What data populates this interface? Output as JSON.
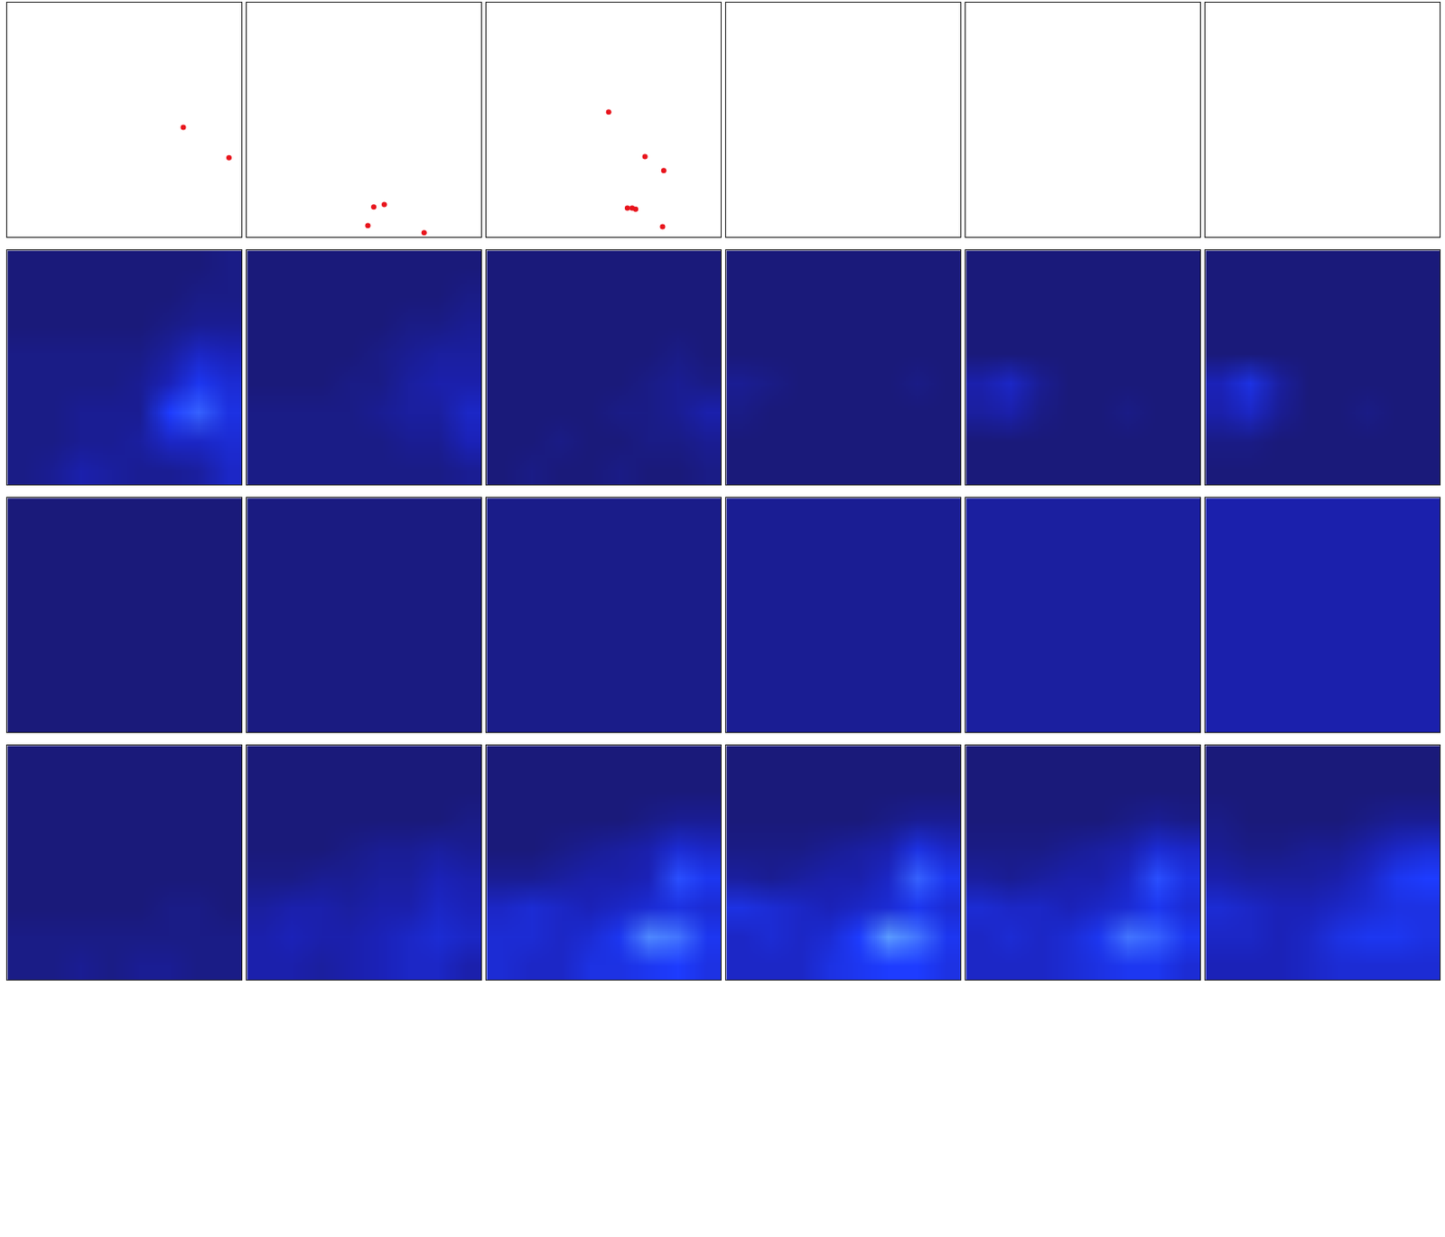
{
  "chart_data": [
    {
      "type": "scatter",
      "x": [
        0.75,
        0.945
      ],
      "y": [
        0.53,
        0.66
      ],
      "color": "#e8141c",
      "xlim": [
        0,
        1
      ],
      "ylim": [
        0,
        1
      ],
      "tick_labels": false
    },
    {
      "type": "scatter",
      "x": [
        0.54,
        0.585,
        0.515,
        0.755
      ],
      "y": [
        0.87,
        0.86,
        0.95,
        0.98
      ],
      "color": "#e8141c",
      "xlim": [
        0,
        1
      ],
      "ylim": [
        0,
        1
      ],
      "tick_labels": false
    },
    {
      "type": "scatter",
      "x": [
        0.52,
        0.675,
        0.755,
        0.6,
        0.62,
        0.635,
        0.75
      ],
      "y": [
        0.465,
        0.655,
        0.715,
        0.875,
        0.875,
        0.88,
        0.955
      ],
      "color": "#e8141c",
      "xlim": [
        0,
        1
      ],
      "ylim": [
        0,
        1
      ],
      "tick_labels": false
    },
    {
      "type": "scatter",
      "x": [],
      "y": [],
      "color": "#e8141c",
      "xlim": [
        0,
        1
      ],
      "ylim": [
        0,
        1
      ],
      "tick_labels": false
    },
    {
      "type": "scatter",
      "x": [],
      "y": [],
      "color": "#e8141c",
      "xlim": [
        0,
        1
      ],
      "ylim": [
        0,
        1
      ],
      "tick_labels": false
    },
    {
      "type": "scatter",
      "x": [],
      "y": [],
      "color": "#e8141c",
      "xlim": [
        0,
        1
      ],
      "ylim": [
        0,
        1
      ],
      "tick_labels": false
    },
    {
      "type": "heatmap",
      "clim": [
        0,
        1
      ],
      "tick_labels": false,
      "cells": [
        [
          0,
          0,
          0,
          0,
          0,
          0,
          0,
          0.05
        ],
        [
          0,
          0,
          0,
          0,
          0,
          0,
          0.05,
          0.05
        ],
        [
          0,
          0,
          0,
          0,
          0,
          0.05,
          0.1,
          0.1
        ],
        [
          0.05,
          0.05,
          0.05,
          0.05,
          0.05,
          0.15,
          0.3,
          0.25
        ],
        [
          0.05,
          0.05,
          0.05,
          0.05,
          0.1,
          0.25,
          0.45,
          0.35
        ],
        [
          0.05,
          0.05,
          0.1,
          0.1,
          0.1,
          0.5,
          0.6,
          0.4
        ],
        [
          0.05,
          0.05,
          0.1,
          0.1,
          0.15,
          0.3,
          0.3,
          0.35
        ],
        [
          0.05,
          0.1,
          0.2,
          0.15,
          0.1,
          0.1,
          0.15,
          0.3
        ]
      ]
    },
    {
      "type": "heatmap",
      "clim": [
        0,
        1
      ],
      "tick_labels": false,
      "cells": [
        [
          0,
          0,
          0,
          0,
          0,
          0,
          0,
          0
        ],
        [
          0,
          0,
          0,
          0,
          0,
          0,
          0,
          0.05
        ],
        [
          0,
          0,
          0,
          0,
          0,
          0.05,
          0.05,
          0.1
        ],
        [
          0,
          0,
          0,
          0,
          0.05,
          0.1,
          0.15,
          0.15
        ],
        [
          0,
          0,
          0,
          0.05,
          0.05,
          0.15,
          0.2,
          0.2
        ],
        [
          0.05,
          0.05,
          0.05,
          0.05,
          0.1,
          0.15,
          0.15,
          0.3
        ],
        [
          0.05,
          0.05,
          0.05,
          0.05,
          0.05,
          0.1,
          0.1,
          0.25
        ],
        [
          0.05,
          0.05,
          0.05,
          0.05,
          0.05,
          0.05,
          0.05,
          0.1
        ]
      ]
    },
    {
      "type": "heatmap",
      "clim": [
        0,
        1
      ],
      "tick_labels": false,
      "cells": [
        [
          0,
          0,
          0,
          0,
          0,
          0,
          0,
          0
        ],
        [
          0,
          0,
          0,
          0,
          0,
          0,
          0,
          0
        ],
        [
          0,
          0,
          0,
          0,
          0,
          0,
          0,
          0
        ],
        [
          0,
          0,
          0,
          0,
          0,
          0,
          0.05,
          0
        ],
        [
          0,
          0,
          0,
          0,
          0,
          0.05,
          0.1,
          0.05
        ],
        [
          0,
          0,
          0,
          0,
          0.05,
          0.05,
          0.1,
          0.2
        ],
        [
          0,
          0,
          0.05,
          0,
          0,
          0.05,
          0.05,
          0.1
        ],
        [
          0,
          0.05,
          0,
          0,
          0.05,
          0,
          0,
          0.05
        ]
      ]
    },
    {
      "type": "heatmap",
      "clim": [
        0,
        1
      ],
      "tick_labels": false,
      "cells": [
        [
          0,
          0,
          0,
          0,
          0,
          0,
          0,
          0
        ],
        [
          0,
          0,
          0,
          0,
          0,
          0,
          0,
          0
        ],
        [
          0,
          0,
          0,
          0,
          0,
          0,
          0,
          0
        ],
        [
          0,
          0,
          0,
          0,
          0,
          0,
          0,
          0
        ],
        [
          0.1,
          0.05,
          0,
          0,
          0,
          0,
          0.05,
          0
        ],
        [
          0.05,
          0,
          0,
          0,
          0,
          0,
          0,
          0
        ],
        [
          0,
          0,
          0,
          0,
          0,
          0,
          0,
          0
        ],
        [
          0,
          0,
          0,
          0,
          0,
          0,
          0,
          0
        ]
      ]
    },
    {
      "type": "heatmap",
      "clim": [
        0,
        1
      ],
      "tick_labels": false,
      "cells": [
        [
          0,
          0,
          0,
          0,
          0,
          0,
          0,
          0
        ],
        [
          0,
          0,
          0,
          0,
          0,
          0,
          0,
          0
        ],
        [
          0,
          0,
          0,
          0,
          0,
          0,
          0,
          0
        ],
        [
          0,
          0,
          0,
          0,
          0,
          0,
          0,
          0
        ],
        [
          0.2,
          0.3,
          0.1,
          0,
          0,
          0,
          0,
          0
        ],
        [
          0.15,
          0.2,
          0.05,
          0,
          0,
          0.05,
          0,
          0
        ],
        [
          0,
          0,
          0,
          0,
          0,
          0,
          0,
          0
        ],
        [
          0,
          0,
          0,
          0,
          0,
          0,
          0,
          0
        ]
      ]
    },
    {
      "type": "heatmap",
      "clim": [
        0,
        1
      ],
      "tick_labels": false,
      "cells": [
        [
          0,
          0,
          0,
          0,
          0,
          0,
          0,
          0
        ],
        [
          0,
          0,
          0,
          0,
          0,
          0,
          0,
          0
        ],
        [
          0,
          0,
          0,
          0,
          0,
          0,
          0,
          0
        ],
        [
          0,
          0,
          0,
          0,
          0,
          0,
          0,
          0
        ],
        [
          0.25,
          0.4,
          0.15,
          0,
          0,
          0,
          0,
          0
        ],
        [
          0.2,
          0.3,
          0.1,
          0,
          0,
          0.05,
          0,
          0
        ],
        [
          0.05,
          0.05,
          0,
          0,
          0,
          0,
          0,
          0
        ],
        [
          0,
          0,
          0,
          0,
          0,
          0,
          0,
          0
        ]
      ]
    },
    {
      "type": "heatmap",
      "clim": [
        0,
        1
      ],
      "tick_labels": false,
      "cells": [
        [
          0,
          0,
          0,
          0
        ],
        [
          0,
          0,
          0,
          0
        ],
        [
          0,
          0,
          0,
          0
        ],
        [
          0,
          0,
          0,
          0
        ]
      ]
    },
    {
      "type": "heatmap",
      "clim": [
        0,
        1
      ],
      "tick_labels": false,
      "cells": [
        [
          0.03,
          0.03,
          0.03,
          0.03
        ],
        [
          0.03,
          0.03,
          0.03,
          0.03
        ],
        [
          0.03,
          0.03,
          0.03,
          0.03
        ],
        [
          0.03,
          0.03,
          0.03,
          0.03
        ]
      ]
    },
    {
      "type": "heatmap",
      "clim": [
        0,
        1
      ],
      "tick_labels": false,
      "cells": [
        [
          0.06,
          0.06,
          0.06,
          0.06
        ],
        [
          0.06,
          0.06,
          0.06,
          0.06
        ],
        [
          0.06,
          0.06,
          0.06,
          0.06
        ],
        [
          0.06,
          0.06,
          0.06,
          0.06
        ]
      ]
    },
    {
      "type": "heatmap",
      "clim": [
        0,
        1
      ],
      "tick_labels": false,
      "cells": [
        [
          0.1,
          0.1,
          0.1,
          0.1
        ],
        [
          0.1,
          0.1,
          0.1,
          0.1
        ],
        [
          0.1,
          0.1,
          0.1,
          0.1
        ],
        [
          0.1,
          0.1,
          0.1,
          0.1
        ]
      ]
    },
    {
      "type": "heatmap",
      "clim": [
        0,
        1
      ],
      "tick_labels": false,
      "cells": [
        [
          0.15,
          0.15,
          0.15,
          0.15
        ],
        [
          0.15,
          0.15,
          0.15,
          0.15
        ],
        [
          0.15,
          0.15,
          0.15,
          0.15
        ],
        [
          0.15,
          0.15,
          0.15,
          0.15
        ]
      ]
    },
    {
      "type": "heatmap",
      "clim": [
        0,
        1
      ],
      "tick_labels": false,
      "cells": [
        [
          0.2,
          0.2,
          0.2,
          0.2
        ],
        [
          0.2,
          0.2,
          0.2,
          0.2
        ],
        [
          0.2,
          0.2,
          0.2,
          0.2
        ],
        [
          0.2,
          0.2,
          0.2,
          0.2
        ]
      ]
    },
    {
      "type": "heatmap",
      "clim": [
        0,
        1
      ],
      "tick_labels": false,
      "cells": [
        [
          0,
          0,
          0,
          0,
          0,
          0,
          0,
          0
        ],
        [
          0,
          0,
          0,
          0,
          0,
          0,
          0,
          0
        ],
        [
          0,
          0,
          0,
          0,
          0,
          0,
          0,
          0
        ],
        [
          0,
          0,
          0,
          0,
          0,
          0,
          0,
          0
        ],
        [
          0,
          0,
          0,
          0,
          0,
          0,
          0,
          0
        ],
        [
          0,
          0,
          0,
          0,
          0,
          0.05,
          0.05,
          0
        ],
        [
          0.05,
          0.05,
          0.05,
          0.05,
          0.05,
          0.05,
          0.05,
          0.05
        ],
        [
          0.05,
          0.05,
          0.1,
          0.05,
          0.1,
          0.1,
          0.05,
          0.05
        ]
      ]
    },
    {
      "type": "heatmap",
      "clim": [
        0,
        1
      ],
      "tick_labels": false,
      "cells": [
        [
          0,
          0,
          0,
          0,
          0,
          0,
          0,
          0
        ],
        [
          0,
          0,
          0,
          0,
          0,
          0,
          0,
          0
        ],
        [
          0,
          0,
          0,
          0,
          0,
          0,
          0,
          0.05
        ],
        [
          0,
          0,
          0,
          0.05,
          0.1,
          0.1,
          0.15,
          0.1
        ],
        [
          0.05,
          0.05,
          0.1,
          0.1,
          0.15,
          0.15,
          0.25,
          0.2
        ],
        [
          0.15,
          0.2,
          0.2,
          0.15,
          0.2,
          0.2,
          0.3,
          0.25
        ],
        [
          0.2,
          0.25,
          0.2,
          0.2,
          0.25,
          0.3,
          0.35,
          0.3
        ],
        [
          0.2,
          0.2,
          0.15,
          0.2,
          0.25,
          0.3,
          0.3,
          0.2
        ]
      ]
    },
    {
      "type": "heatmap",
      "clim": [
        0,
        1
      ],
      "tick_labels": false,
      "cells": [
        [
          0,
          0,
          0,
          0,
          0,
          0,
          0,
          0
        ],
        [
          0,
          0,
          0,
          0,
          0,
          0,
          0,
          0
        ],
        [
          0,
          0,
          0,
          0,
          0,
          0.05,
          0.1,
          0.1
        ],
        [
          0,
          0,
          0.05,
          0.1,
          0.15,
          0.2,
          0.35,
          0.3
        ],
        [
          0.1,
          0.1,
          0.15,
          0.2,
          0.2,
          0.25,
          0.55,
          0.45
        ],
        [
          0.3,
          0.35,
          0.3,
          0.25,
          0.3,
          0.35,
          0.4,
          0.35
        ],
        [
          0.35,
          0.35,
          0.3,
          0.35,
          0.45,
          0.7,
          0.65,
          0.45
        ],
        [
          0.35,
          0.3,
          0.3,
          0.4,
          0.4,
          0.45,
          0.5,
          0.4
        ]
      ]
    },
    {
      "type": "heatmap",
      "clim": [
        0,
        1
      ],
      "tick_labels": false,
      "cells": [
        [
          0,
          0,
          0,
          0,
          0,
          0,
          0,
          0
        ],
        [
          0,
          0,
          0,
          0,
          0,
          0,
          0,
          0
        ],
        [
          0,
          0,
          0,
          0,
          0,
          0.05,
          0.1,
          0.1
        ],
        [
          0.05,
          0.05,
          0.05,
          0.1,
          0.15,
          0.2,
          0.4,
          0.3
        ],
        [
          0.15,
          0.1,
          0.15,
          0.2,
          0.2,
          0.3,
          0.6,
          0.45
        ],
        [
          0.4,
          0.35,
          0.3,
          0.25,
          0.3,
          0.35,
          0.45,
          0.35
        ],
        [
          0.3,
          0.35,
          0.3,
          0.35,
          0.5,
          0.75,
          0.65,
          0.45
        ],
        [
          0.3,
          0.3,
          0.3,
          0.4,
          0.45,
          0.5,
          0.5,
          0.4
        ]
      ]
    },
    {
      "type": "heatmap",
      "clim": [
        0,
        1
      ],
      "tick_labels": false,
      "cells": [
        [
          0,
          0,
          0,
          0,
          0,
          0,
          0,
          0
        ],
        [
          0,
          0,
          0,
          0,
          0,
          0,
          0,
          0
        ],
        [
          0,
          0,
          0,
          0,
          0,
          0.05,
          0.1,
          0.05
        ],
        [
          0.05,
          0.05,
          0.05,
          0.1,
          0.15,
          0.2,
          0.35,
          0.3
        ],
        [
          0.15,
          0.1,
          0.15,
          0.2,
          0.2,
          0.3,
          0.55,
          0.4
        ],
        [
          0.35,
          0.3,
          0.3,
          0.25,
          0.3,
          0.35,
          0.45,
          0.35
        ],
        [
          0.3,
          0.35,
          0.3,
          0.35,
          0.45,
          0.65,
          0.6,
          0.45
        ],
        [
          0.3,
          0.3,
          0.3,
          0.35,
          0.4,
          0.45,
          0.45,
          0.35
        ]
      ]
    },
    {
      "type": "heatmap",
      "clim": [
        0,
        1
      ],
      "tick_labels": false,
      "cells": [
        [
          0,
          0,
          0,
          0,
          0,
          0,
          0,
          0
        ],
        [
          0,
          0,
          0,
          0,
          0,
          0,
          0,
          0
        ],
        [
          0.05,
          0,
          0,
          0,
          0,
          0.05,
          0.1,
          0.1
        ],
        [
          0.1,
          0.05,
          0.05,
          0.1,
          0.1,
          0.2,
          0.3,
          0.35
        ],
        [
          0.2,
          0.15,
          0.15,
          0.15,
          0.2,
          0.3,
          0.45,
          0.5
        ],
        [
          0.35,
          0.3,
          0.25,
          0.25,
          0.3,
          0.35,
          0.4,
          0.4
        ],
        [
          0.3,
          0.3,
          0.25,
          0.3,
          0.4,
          0.45,
          0.45,
          0.4
        ],
        [
          0.25,
          0.25,
          0.25,
          0.3,
          0.35,
          0.35,
          0.35,
          0.35
        ]
      ]
    }
  ]
}
